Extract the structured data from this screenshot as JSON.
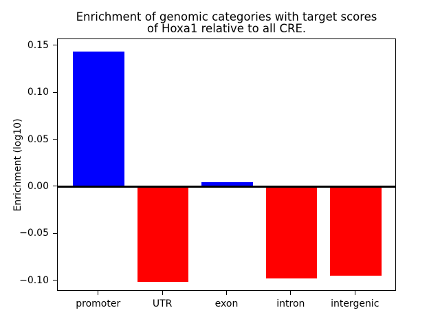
{
  "chart_data": {
    "type": "bar",
    "title": "Enrichment of genomic categories with target scores\nof Hoxa1 relative to all CRE.",
    "xlabel": "",
    "ylabel": "Enrichment (log10)",
    "categories": [
      "promoter",
      "UTR",
      "exon",
      "intron",
      "intergenic"
    ],
    "values": [
      0.144,
      -0.101,
      0.005,
      -0.097,
      -0.094
    ],
    "positive_color": "#0000ff",
    "negative_color": "#ff0000",
    "zero_line_color": "#000000",
    "ylim": [
      -0.111,
      0.157
    ],
    "xlim": [
      -0.64,
      4.64
    ],
    "bar_width": 0.8,
    "yticks": [
      0.15,
      0.1,
      0.05,
      0.0,
      -0.05,
      -0.1
    ],
    "ytick_labels": [
      "0.15",
      "0.10",
      "0.05",
      "0.00",
      "−0.05",
      "−0.10"
    ],
    "grid": false,
    "legend": null
  }
}
